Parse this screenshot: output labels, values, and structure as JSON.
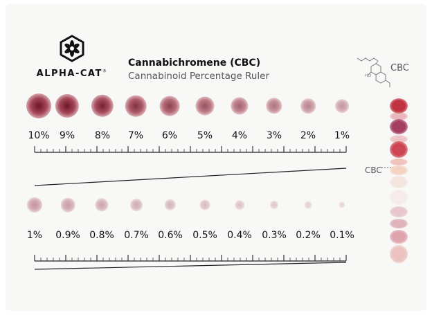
{
  "brand": {
    "logo_text": "ALPHA-CAT",
    "trademark": "®",
    "icon": "hexagon-cat-flower-icon"
  },
  "header": {
    "title": "Cannabichromene (CBC)",
    "subtitle": "Cannabinoid Percentage Ruler",
    "structure_icon": "cbc-molecule-structure-icon",
    "structure_label": "CBC"
  },
  "row1": {
    "labels": [
      "10%",
      "9%",
      "8%",
      "7%",
      "6%",
      "5%",
      "4%",
      "3%",
      "2%",
      "1%"
    ],
    "percentages": [
      10,
      9,
      8,
      7,
      6,
      5,
      4,
      3,
      2,
      1
    ]
  },
  "row2": {
    "labels": [
      "1%",
      "0.9%",
      "0.8%",
      "0.7%",
      "0.6%",
      "0.5%",
      "0.4%",
      "0.3%",
      "0.2%",
      "0.1%"
    ],
    "percentages": [
      1,
      0.9,
      0.8,
      0.7,
      0.6,
      0.5,
      0.4,
      0.3,
      0.2,
      0.1
    ]
  },
  "lane": {
    "label": "CBC"
  },
  "colors": {
    "spot_dark": "#7a1c2c",
    "spot_light": "#d98e96",
    "text": "#111111",
    "muted": "#555555",
    "card": "#f8f8f7"
  }
}
